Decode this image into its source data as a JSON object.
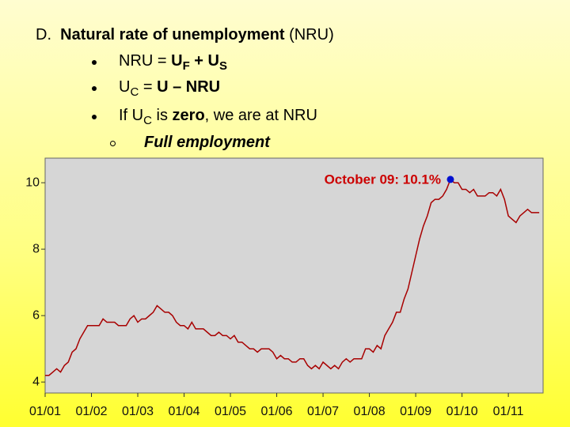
{
  "slide": {
    "heading": [
      {
        "text": "D.  "
      },
      {
        "text": "Natural rate of unemployment",
        "bold": true
      },
      {
        "text": " (NRU)"
      }
    ],
    "bullets": [
      [
        {
          "text": "NRU = "
        },
        {
          "text": "U",
          "bold": true
        },
        {
          "text": "F",
          "bold": true,
          "sub": true
        },
        {
          "text": " + U",
          "bold": true
        },
        {
          "text": "S",
          "bold": true,
          "sub": true
        }
      ],
      [
        {
          "text": "U"
        },
        {
          "text": "C",
          "sub": true
        },
        {
          "text": " = "
        },
        {
          "text": "U – NRU",
          "bold": true
        }
      ],
      [
        {
          "text": "If U"
        },
        {
          "text": "C",
          "sub": true
        },
        {
          "text": " is "
        },
        {
          "text": "zero",
          "bold": true
        },
        {
          "text": ", we are at NRU"
        }
      ]
    ],
    "sub_bullet": "Full employment"
  },
  "chart_data": {
    "type": "line",
    "x": [
      "01/01",
      "02/01",
      "03/01",
      "04/01",
      "05/01",
      "06/01",
      "07/01",
      "08/01",
      "09/01",
      "10/01",
      "11/01",
      "12/01",
      "01/02",
      "02/02",
      "03/02",
      "04/02",
      "05/02",
      "06/02",
      "07/02",
      "08/02",
      "09/02",
      "10/02",
      "11/02",
      "12/02",
      "01/03",
      "02/03",
      "03/03",
      "04/03",
      "05/03",
      "06/03",
      "07/03",
      "08/03",
      "09/03",
      "10/03",
      "11/03",
      "12/03",
      "01/04",
      "02/04",
      "03/04",
      "04/04",
      "05/04",
      "06/04",
      "07/04",
      "08/04",
      "09/04",
      "10/04",
      "11/04",
      "12/04",
      "01/05",
      "02/05",
      "03/05",
      "04/05",
      "05/05",
      "06/05",
      "07/05",
      "08/05",
      "09/05",
      "10/05",
      "11/05",
      "12/05",
      "01/06",
      "02/06",
      "03/06",
      "04/06",
      "05/06",
      "06/06",
      "07/06",
      "08/06",
      "09/06",
      "10/06",
      "11/06",
      "12/06",
      "01/07",
      "02/07",
      "03/07",
      "04/07",
      "05/07",
      "06/07",
      "07/07",
      "08/07",
      "09/07",
      "10/07",
      "11/07",
      "12/07",
      "01/08",
      "02/08",
      "03/08",
      "04/08",
      "05/08",
      "06/08",
      "07/08",
      "08/08",
      "09/08",
      "10/08",
      "11/08",
      "12/08",
      "01/09",
      "02/09",
      "03/09",
      "04/09",
      "05/09",
      "06/09",
      "07/09",
      "08/09",
      "09/09",
      "10/09",
      "11/09",
      "12/09",
      "01/10",
      "02/10",
      "03/10",
      "04/10",
      "05/10",
      "06/10",
      "07/10",
      "08/10",
      "09/10",
      "10/10",
      "11/10",
      "12/10",
      "01/11",
      "02/11",
      "03/11",
      "04/11",
      "05/11",
      "06/11",
      "07/11",
      "08/11",
      "09/11"
    ],
    "series": [
      {
        "color": "#a80000",
        "values": [
          4.2,
          4.2,
          4.3,
          4.4,
          4.3,
          4.5,
          4.6,
          4.9,
          5.0,
          5.3,
          5.5,
          5.7,
          5.7,
          5.7,
          5.7,
          5.9,
          5.8,
          5.8,
          5.8,
          5.7,
          5.7,
          5.7,
          5.9,
          6.0,
          5.8,
          5.9,
          5.9,
          6.0,
          6.1,
          6.3,
          6.2,
          6.1,
          6.1,
          6.0,
          5.8,
          5.7,
          5.7,
          5.6,
          5.8,
          5.6,
          5.6,
          5.6,
          5.5,
          5.4,
          5.4,
          5.5,
          5.4,
          5.4,
          5.3,
          5.4,
          5.2,
          5.2,
          5.1,
          5.0,
          5.0,
          4.9,
          5.0,
          5.0,
          5.0,
          4.9,
          4.7,
          4.8,
          4.7,
          4.7,
          4.6,
          4.6,
          4.7,
          4.7,
          4.5,
          4.4,
          4.5,
          4.4,
          4.6,
          4.5,
          4.4,
          4.5,
          4.4,
          4.6,
          4.7,
          4.6,
          4.7,
          4.7,
          4.7,
          5.0,
          5.0,
          4.9,
          5.1,
          5.0,
          5.4,
          5.6,
          5.8,
          6.1,
          6.1,
          6.5,
          6.8,
          7.3,
          7.8,
          8.3,
          8.7,
          9.0,
          9.4,
          9.5,
          9.5,
          9.6,
          9.8,
          10.1,
          10.0,
          10.0,
          9.8,
          9.8,
          9.7,
          9.8,
          9.6,
          9.6,
          9.6,
          9.7,
          9.7,
          9.6,
          9.8,
          9.5,
          9.0,
          8.9,
          8.8,
          9.0,
          9.1,
          9.2,
          9.1,
          9.1,
          9.1
        ]
      }
    ],
    "xlim": [
      "01/01",
      "10/11"
    ],
    "xticks": [
      "01/01",
      "01/02",
      "01/03",
      "01/04",
      "01/05",
      "01/06",
      "01/07",
      "01/08",
      "01/09",
      "01/10",
      "01/11"
    ],
    "ylim": [
      3.67,
      10.74
    ],
    "yticks": [
      4,
      6,
      8,
      10
    ],
    "annotation": {
      "text": "October 09:  10.1%",
      "x": "10/09",
      "color": "#cc0000",
      "marker_color": "#0010d0"
    }
  }
}
